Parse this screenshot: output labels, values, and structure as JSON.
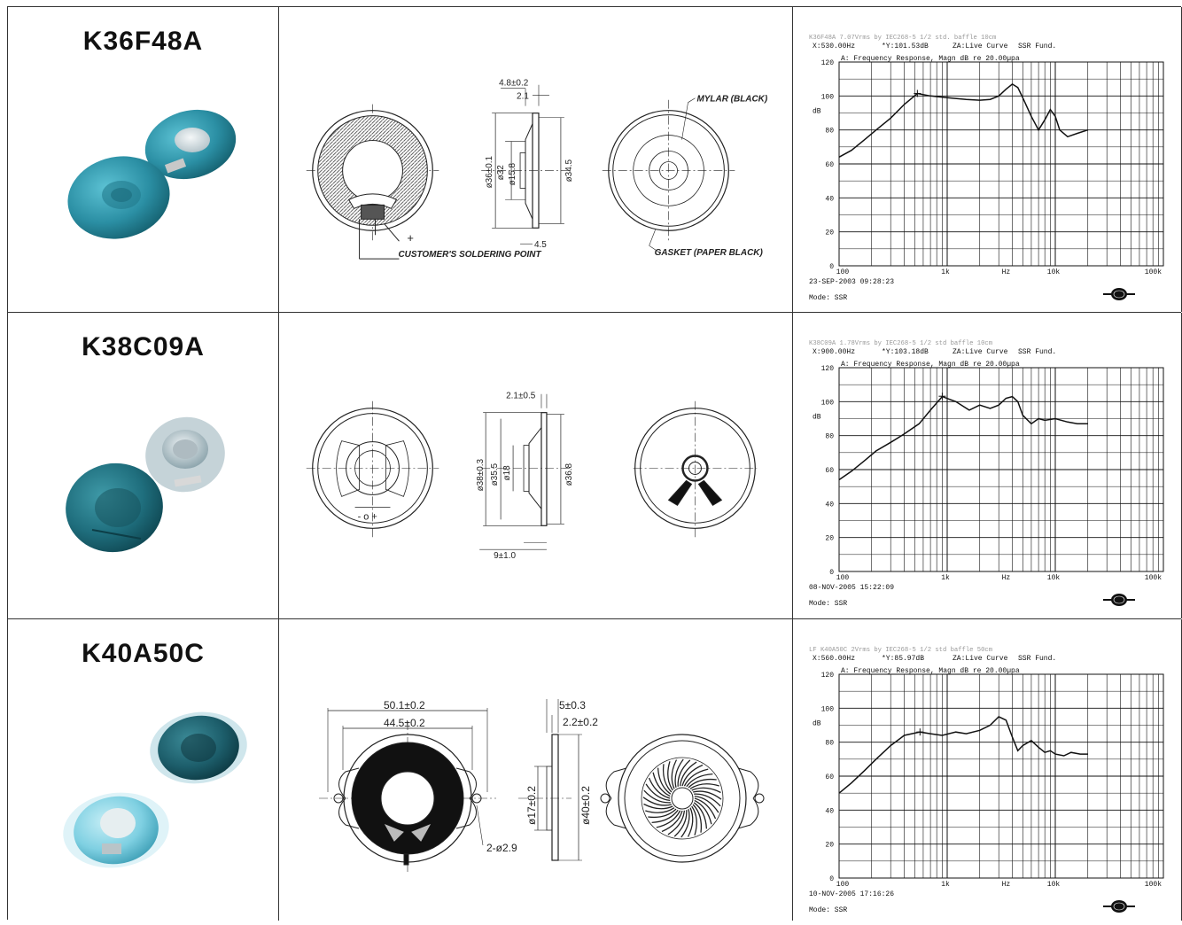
{
  "rows": [
    {
      "model": "K36F48A",
      "drawing": {
        "dims": [
          "4.8±0.2",
          "2.1",
          "ø36±0.1",
          "ø32",
          "ø15.8",
          "ø34.5",
          "4.5"
        ],
        "callouts": [
          "MYLAR (BLACK)",
          "CUSTOMER'S SOLDERING POINT",
          "GASKET (PAPER BLACK)"
        ],
        "sign": "+"
      },
      "chart_data": {
        "type": "line",
        "header_line": "K36F48A 7.07Vrms by IEC268-5 1/2 std. baffle 10cm",
        "readout_x": "X:530.00Hz",
        "readout_y": "*Y:101.53dB",
        "za": "ZA:Live Curve",
        "ssr": "SSR Fund.",
        "title": "A: Frequency Response, Magn dB re 20.00µpa",
        "ylabel": "dB",
        "xlabel": "Hz",
        "x_scale": "log",
        "xlim": [
          100,
          100000
        ],
        "ylim": [
          0,
          120
        ],
        "ytick_labels": [
          "120",
          "100",
          "80",
          "60",
          "40",
          "20",
          "0"
        ],
        "xtick_labels": [
          "100",
          "1k",
          "10k",
          "100k"
        ],
        "date": "23-SEP-2003 09:28:23",
        "mode": "Mode: SSR",
        "marker": {
          "x": 530,
          "y": 101.5
        },
        "x": [
          100,
          130,
          170,
          220,
          300,
          400,
          530,
          700,
          1000,
          1500,
          2000,
          2500,
          3000,
          3500,
          4000,
          4500,
          5000,
          6000,
          7000,
          8000,
          9000,
          10000,
          11000,
          13000,
          16000,
          20000
        ],
        "y": [
          64,
          68,
          74,
          80,
          87,
          95,
          101.5,
          100,
          99,
          98,
          97.5,
          98,
          100,
          104,
          107,
          105,
          99,
          88,
          80,
          86,
          92,
          88,
          80,
          76,
          78,
          80
        ]
      }
    },
    {
      "model": "K38C09A",
      "drawing": {
        "dims": [
          "2.1±0.5",
          "ø38±0.3",
          "ø35.5",
          "ø18",
          "ø36.8",
          "9±1.0"
        ],
        "callouts": [],
        "sign": "- o +"
      },
      "chart_data": {
        "type": "line",
        "header_line": "K38C09A 1.78Vrms by IEC268-5 1/2 std baffle 10cm",
        "readout_x": "X:900.00Hz",
        "readout_y": "*Y:103.18dB",
        "za": "ZA:Live Curve",
        "ssr": "SSR Fund.",
        "title": "A: Frequency Response, Magn dB re 20.00µpa",
        "ylabel": "dB",
        "xlabel": "Hz",
        "x_scale": "log",
        "xlim": [
          100,
          100000
        ],
        "ylim": [
          0,
          120
        ],
        "ytick_labels": [
          "120",
          "100",
          "80",
          "60",
          "40",
          "20",
          "0"
        ],
        "xtick_labels": [
          "100",
          "1k",
          "10k",
          "100k"
        ],
        "date": "08-NOV-2005 15:22:09",
        "mode": "Mode: SSR",
        "marker": {
          "x": 900,
          "y": 103.2
        },
        "x": [
          100,
          130,
          170,
          220,
          300,
          400,
          550,
          700,
          900,
          1200,
          1600,
          2000,
          2500,
          3000,
          3500,
          4000,
          4500,
          5000,
          6000,
          7000,
          8000,
          10000,
          13000,
          16000,
          20000
        ],
        "y": [
          54,
          59,
          65,
          71,
          76,
          81,
          87,
          95,
          103,
          100,
          95,
          98,
          96,
          98,
          102,
          103,
          100,
          92,
          87,
          90,
          89,
          90,
          88,
          87,
          87
        ]
      }
    },
    {
      "model": "K40A50C",
      "drawing": {
        "dims": [
          "50.1±0.2",
          "44.5±0.2",
          "2-ø2.9",
          "ø17±0.2",
          "5±0.3",
          "2.2±0.2",
          "ø40±0.2"
        ],
        "callouts": [],
        "sign": ""
      },
      "chart_data": {
        "type": "line",
        "header_line": "LF K40A50C 2Vrms by IEC268-5 1/2 std baffle 50cm",
        "readout_x": "X:560.00Hz",
        "readout_y": "*Y:85.97dB",
        "za": "ZA:Live Curve",
        "ssr": "SSR Fund.",
        "title": "A: Frequency Response, Magn dB re 20.00µpa",
        "ylabel": "dB",
        "xlabel": "Hz",
        "x_scale": "log",
        "xlim": [
          100,
          100000
        ],
        "ylim": [
          0,
          120
        ],
        "ytick_labels": [
          "120",
          "100",
          "80",
          "60",
          "40",
          "20",
          "0"
        ],
        "xtick_labels": [
          "100",
          "1k",
          "10k",
          "100k"
        ],
        "date": "10-NOV-2005 17:16:26",
        "mode": "Mode: SSR",
        "marker": {
          "x": 560,
          "y": 86
        },
        "x": [
          100,
          130,
          170,
          220,
          300,
          400,
          560,
          700,
          900,
          1200,
          1500,
          2000,
          2500,
          3000,
          3500,
          4000,
          4500,
          5000,
          6000,
          7000,
          8000,
          9000,
          10000,
          12000,
          14000,
          17000,
          20000
        ],
        "y": [
          50,
          56,
          63,
          70,
          78,
          84,
          86,
          85,
          84,
          86,
          85,
          87,
          90,
          95,
          93,
          83,
          75,
          78,
          81,
          77,
          74,
          75,
          73,
          72,
          74,
          73,
          73
        ]
      }
    }
  ],
  "colors": {
    "border": "#333333",
    "photo_teal": "#2b8fa4",
    "photo_teal_dark": "#15606f",
    "photo_silver": "#c9d6dc",
    "chart_grid": "#111111",
    "chart_gray_text": "#9a9a9a"
  }
}
